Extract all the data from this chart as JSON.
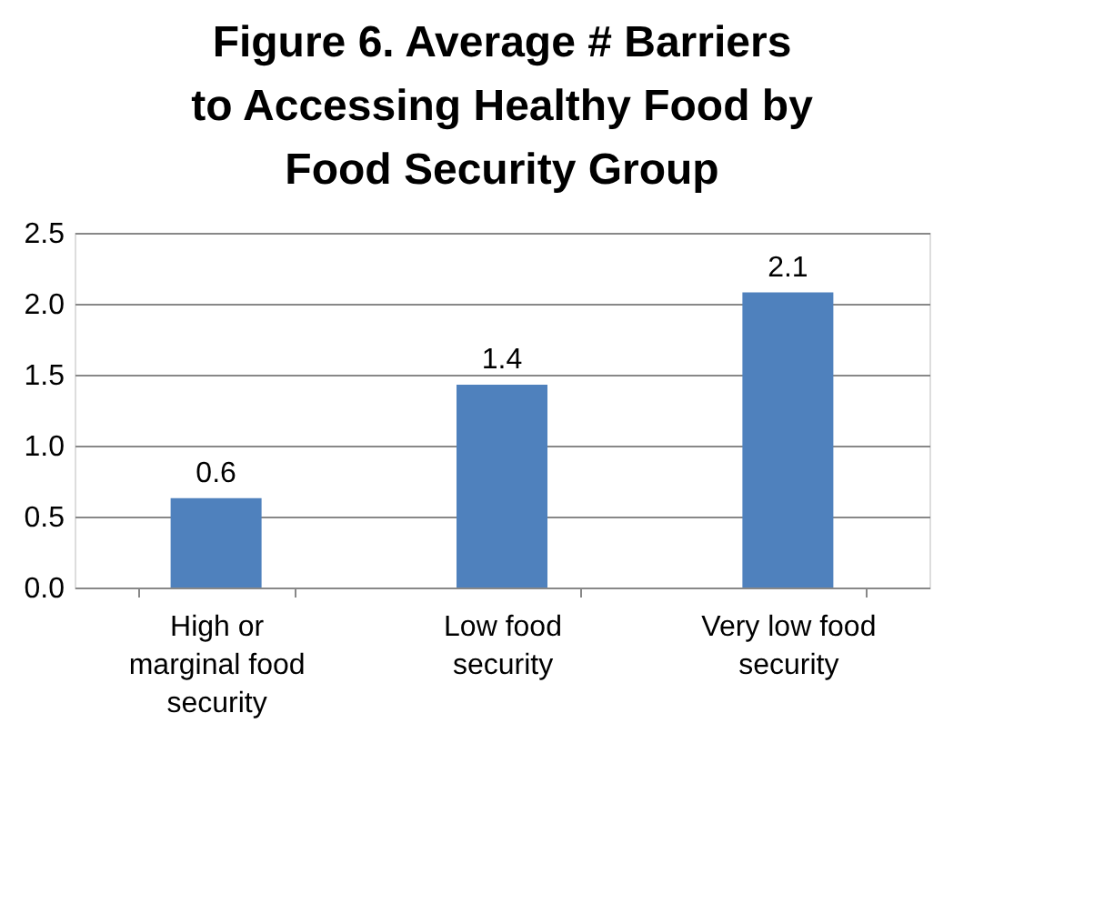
{
  "chart_data": {
    "type": "bar",
    "title": "Figure 6. Average # Barriers to Accessing Healthy Food by Food Security Group",
    "categories": [
      "High or marginal food security",
      "Low food security",
      "Very low food security"
    ],
    "values": [
      0.63,
      1.43,
      2.08
    ],
    "value_labels": [
      "0.6",
      "1.4",
      "2.1"
    ],
    "color": "#4f81bd",
    "ylim": [
      0,
      2.5
    ],
    "yticks": [
      {
        "value": 0,
        "label": "0.0"
      },
      0.5,
      {
        "value": 1,
        "label": "1.0"
      },
      1.5,
      {
        "value": 2,
        "label": "2.0"
      },
      2.5
    ],
    "grid": "y"
  }
}
